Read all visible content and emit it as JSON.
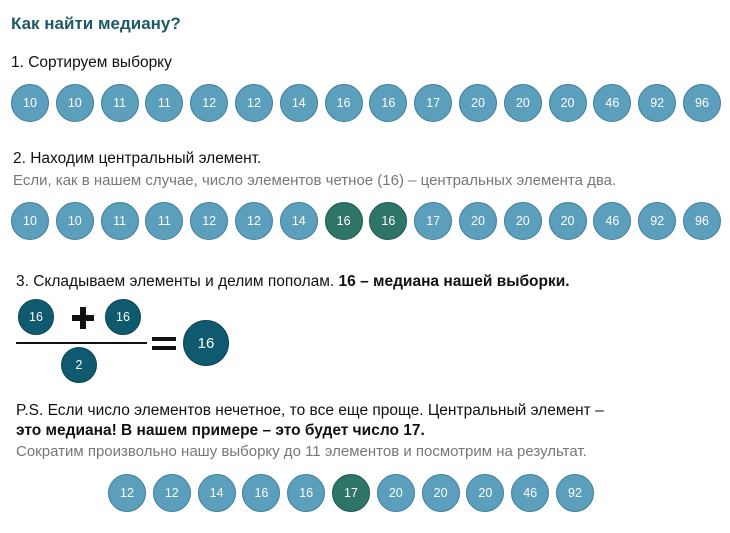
{
  "title": "Как найти медиану?",
  "step1": {
    "label": "1. Сортируем выборку",
    "values": [
      "10",
      "10",
      "11",
      "11",
      "12",
      "12",
      "14",
      "16",
      "16",
      "17",
      "20",
      "20",
      "20",
      "46",
      "92",
      "96"
    ]
  },
  "step2": {
    "label": "2. Находим центральный элемент.",
    "note": "Если, как в нашем случае, число элементов четное (16) – центральных элемента два.",
    "values": [
      "10",
      "10",
      "11",
      "11",
      "12",
      "12",
      "14",
      "16",
      "16",
      "17",
      "20",
      "20",
      "20",
      "46",
      "92",
      "96"
    ],
    "highlighted_indices": [
      7,
      8
    ]
  },
  "step3": {
    "label_plain": "3. Складываем элементы и делим пополам. ",
    "label_bold": "16 – медиана нашей выборки.",
    "formula": {
      "a": "16",
      "b": "16",
      "divisor": "2",
      "result": "16"
    }
  },
  "ps": {
    "line1": "P.S. Если число элементов нечетное, то все еще проще. Центральный элемент –",
    "line2": "это медиана! В нашем примере – это будет число 17.",
    "note": "Сократим произвольно нашу выборку до 11 элементов и посмотрим на результат.",
    "values": [
      "12",
      "12",
      "14",
      "16",
      "16",
      "17",
      "20",
      "20",
      "20",
      "46",
      "92"
    ],
    "highlighted_indices": [
      5
    ]
  },
  "colors": {
    "ball": "#5b9fbd",
    "ball_highlight": "#2e7467",
    "formula_ball": "#0f5a6e",
    "title": "#1f5a66"
  }
}
